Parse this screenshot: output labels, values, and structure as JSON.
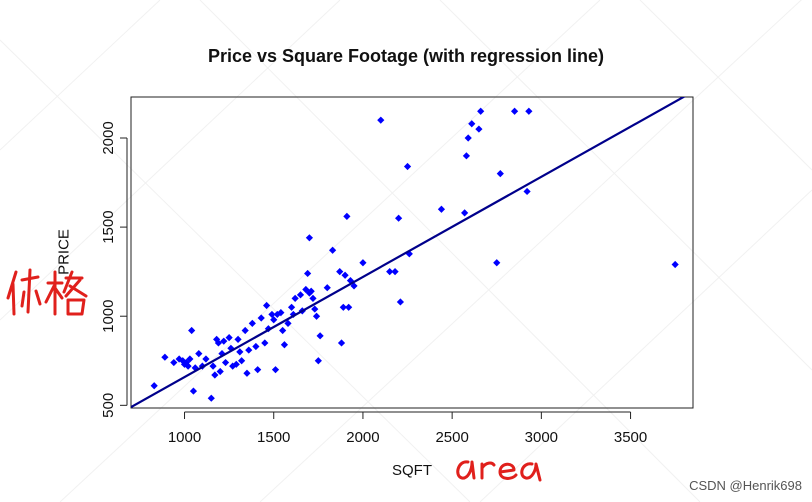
{
  "chart_data": {
    "type": "scatter",
    "title": "Price vs Square Footage (with regression line)",
    "xlabel": "SQFT",
    "ylabel": "PRICE",
    "xlim": [
      700,
      3850
    ],
    "ylim": [
      485,
      2230
    ],
    "xticks": [
      1000,
      1500,
      2000,
      2500,
      3000,
      3500
    ],
    "yticks": [
      500,
      1000,
      1500,
      2000
    ],
    "grid": false,
    "marker_color": "#0000FF",
    "line_color": "#00008B",
    "regression_line": {
      "x": [
        700,
        3850
      ],
      "y": [
        490,
        2260
      ]
    },
    "x": [
      830,
      890,
      940,
      970,
      990,
      1000,
      1010,
      1020,
      1030,
      1040,
      1050,
      1060,
      1080,
      1100,
      1120,
      1150,
      1160,
      1170,
      1180,
      1190,
      1200,
      1210,
      1220,
      1230,
      1250,
      1260,
      1270,
      1290,
      1300,
      1310,
      1320,
      1340,
      1350,
      1360,
      1380,
      1400,
      1410,
      1430,
      1450,
      1460,
      1470,
      1490,
      1500,
      1510,
      1520,
      1540,
      1550,
      1560,
      1580,
      1600,
      1610,
      1620,
      1650,
      1660,
      1680,
      1690,
      1700,
      1700,
      1710,
      1720,
      1730,
      1740,
      1750,
      1760,
      1800,
      1830,
      1870,
      1880,
      1890,
      1900,
      1910,
      1920,
      1930,
      1950,
      2000,
      2100,
      2150,
      2180,
      2200,
      2210,
      2250,
      2260,
      2440,
      2570,
      2580,
      2590,
      2610,
      2650,
      2660,
      2750,
      2770,
      2850,
      2920,
      2930,
      3750
    ],
    "y": [
      610,
      770,
      740,
      760,
      750,
      730,
      740,
      720,
      760,
      920,
      580,
      710,
      790,
      720,
      760,
      540,
      720,
      670,
      870,
      850,
      690,
      790,
      860,
      740,
      880,
      820,
      720,
      730,
      870,
      800,
      750,
      920,
      680,
      810,
      960,
      830,
      700,
      990,
      850,
      1060,
      930,
      1010,
      980,
      700,
      1010,
      1020,
      920,
      840,
      960,
      1050,
      1010,
      1100,
      1120,
      1030,
      1150,
      1240,
      1130,
      1440,
      1140,
      1100,
      1040,
      1000,
      750,
      890,
      1160,
      1370,
      1250,
      850,
      1050,
      1230,
      1560,
      1050,
      1200,
      1170,
      1300,
      2100,
      1250,
      1250,
      1550,
      1080,
      1840,
      1350,
      1600,
      1580,
      1900,
      2000,
      2080,
      2050,
      2150,
      1300,
      1800,
      2150,
      1700,
      2150,
      1290
    ]
  },
  "watermark": "CSDN @Henrik698",
  "annotations": {
    "chinese_price": "价格",
    "area": "area"
  }
}
